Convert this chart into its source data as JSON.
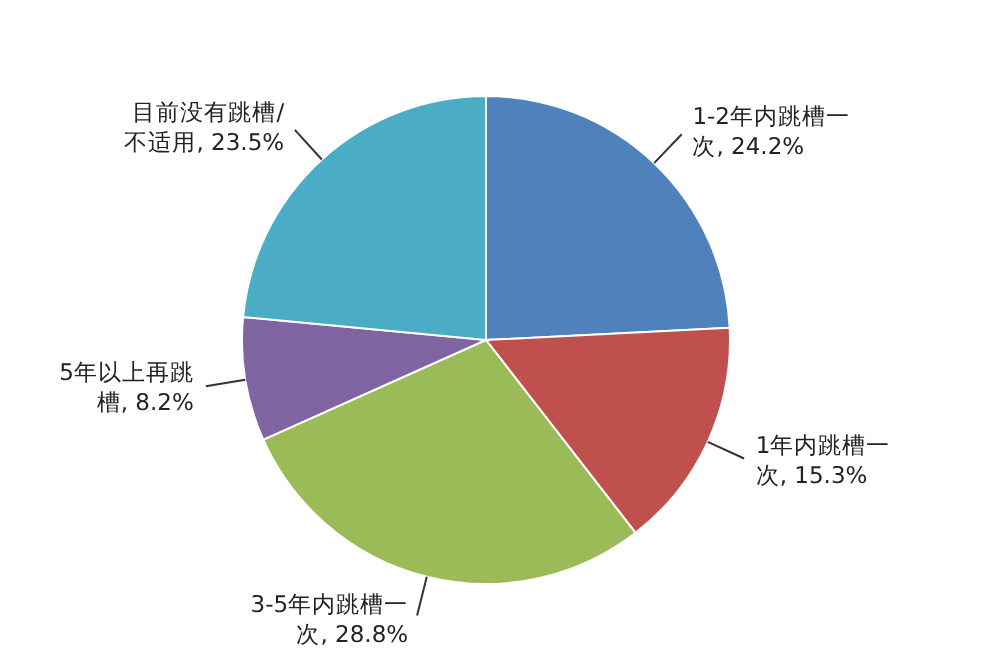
{
  "chart_data": {
    "type": "pie",
    "categories": [
      "1-2年内跳槽一次",
      "1年内跳槽一次",
      "3-5年内跳槽一次",
      "5年以上再跳槽",
      "目前没有跳槽/不适用"
    ],
    "values": [
      24.2,
      15.3,
      28.8,
      8.2,
      23.5
    ],
    "colors": [
      "#4f81bd",
      "#c0504d",
      "#9bbb59",
      "#8064a2",
      "#4bacc6"
    ],
    "value_labels": [
      "24.2%",
      "15.3%",
      "28.8%",
      "8.2%",
      "23.5%"
    ],
    "legend": false
  }
}
